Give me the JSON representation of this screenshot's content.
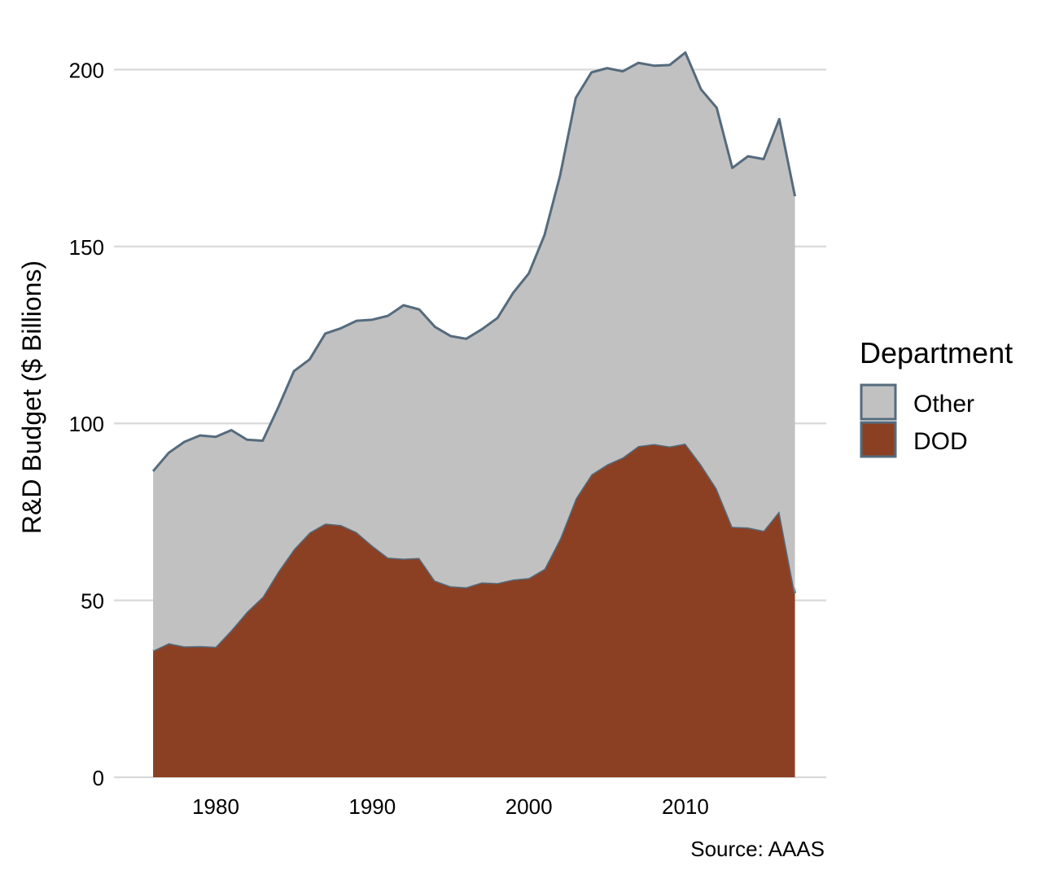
{
  "chart_data": {
    "type": "area",
    "stacked": true,
    "title": "",
    "xlabel": "",
    "ylabel": "R&D Budget ($ Billions)",
    "caption": "Source: AAAS",
    "xlim": [
      1973.5,
      2019
    ],
    "ylim": [
      0,
      210
    ],
    "x_ticks": [
      1980,
      1990,
      2000,
      2010
    ],
    "y_ticks": [
      0,
      50,
      100,
      150,
      200
    ],
    "grid": "horizontal major",
    "legend_title": "Department",
    "legend_position": "right",
    "x": [
      1976,
      1977,
      1978,
      1979,
      1980,
      1981,
      1982,
      1983,
      1984,
      1985,
      1986,
      1987,
      1988,
      1989,
      1990,
      1991,
      1992,
      1993,
      1994,
      1995,
      1996,
      1997,
      1998,
      1999,
      2000,
      2001,
      2002,
      2003,
      2004,
      2005,
      2006,
      2007,
      2008,
      2009,
      2010,
      2011,
      2012,
      2013,
      2014,
      2015,
      2016,
      2017
    ],
    "series": [
      {
        "name": "DOD",
        "color": "#8B4023",
        "values": [
          35.8,
          37.9,
          37.0,
          37.1,
          36.9,
          41.6,
          46.8,
          51.0,
          58.2,
          64.5,
          69.2,
          71.7,
          71.3,
          69.3,
          65.5,
          62.1,
          61.8,
          62.0,
          55.6,
          54.0,
          53.7,
          55.1,
          54.9,
          55.9,
          56.3,
          58.9,
          67.5,
          78.8,
          85.6,
          88.4,
          90.4,
          93.6,
          94.2,
          93.5,
          94.3,
          88.4,
          81.6,
          70.8,
          70.6,
          69.7,
          75.2,
          52.0
        ]
      },
      {
        "name": "Other",
        "color": "#C1C1C1",
        "values": [
          50.7,
          53.8,
          57.8,
          59.5,
          59.3,
          56.5,
          48.6,
          44.1,
          46.4,
          50.3,
          48.9,
          53.7,
          55.6,
          59.7,
          63.8,
          68.3,
          71.6,
          70.2,
          71.7,
          70.7,
          70.2,
          71.5,
          74.9,
          81.0,
          86.1,
          94.3,
          102.6,
          113.2,
          113.6,
          112.0,
          109.1,
          108.3,
          106.9,
          107.8,
          110.5,
          106.0,
          107.6,
          101.4,
          104.9,
          105.0,
          110.8,
          112.2
        ]
      }
    ],
    "outline_color": "#556B7D",
    "grid_color": "#D9D9D9"
  }
}
